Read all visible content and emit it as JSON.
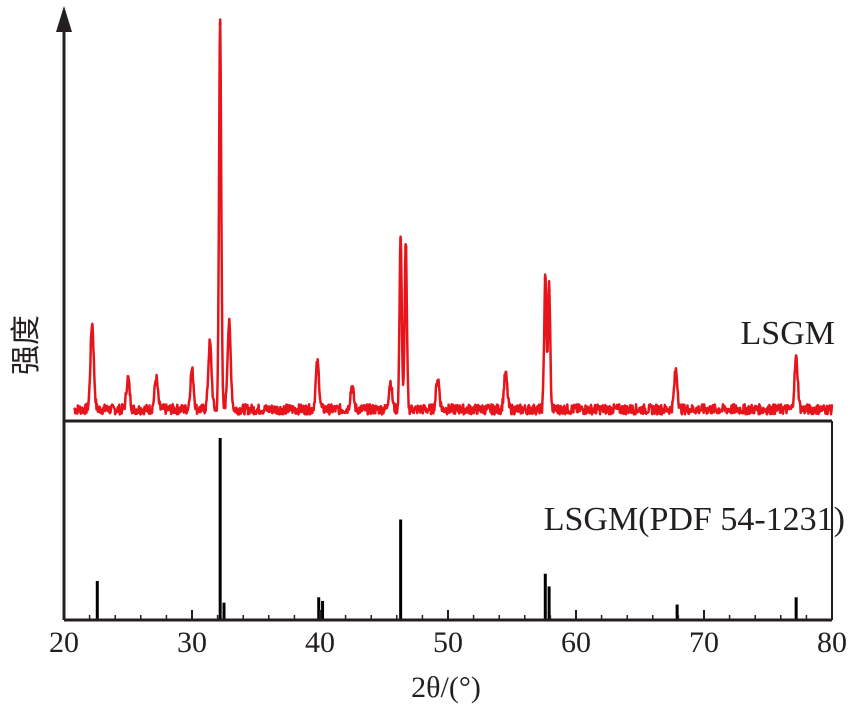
{
  "chart_data": {
    "type": "line",
    "xlabel": "2θ/(°)",
    "ylabel": "强度",
    "xlim": [
      20,
      80
    ],
    "x_ticks": [
      "20",
      "30",
      "40",
      "50",
      "60",
      "70",
      "80"
    ],
    "grid": false,
    "series": [
      {
        "name": "LSGM",
        "color": "#e8141b",
        "kind": "profile",
        "peaks": [
          {
            "x": 22.2,
            "intensity": 22
          },
          {
            "x": 25.0,
            "intensity": 8
          },
          {
            "x": 27.2,
            "intensity": 8
          },
          {
            "x": 30.0,
            "intensity": 10
          },
          {
            "x": 31.4,
            "intensity": 17
          },
          {
            "x": 32.2,
            "intensity": 100
          },
          {
            "x": 32.9,
            "intensity": 22
          },
          {
            "x": 39.8,
            "intensity": 12
          },
          {
            "x": 42.5,
            "intensity": 6
          },
          {
            "x": 45.5,
            "intensity": 7
          },
          {
            "x": 46.3,
            "intensity": 45
          },
          {
            "x": 46.7,
            "intensity": 43
          },
          {
            "x": 49.2,
            "intensity": 8
          },
          {
            "x": 54.5,
            "intensity": 9
          },
          {
            "x": 57.6,
            "intensity": 35
          },
          {
            "x": 57.9,
            "intensity": 32
          },
          {
            "x": 67.8,
            "intensity": 10
          },
          {
            "x": 77.2,
            "intensity": 13
          }
        ]
      },
      {
        "name": "LSGM(PDF 54-1231)",
        "color": "#000000",
        "kind": "sticks",
        "peaks": [
          {
            "x": 22.6,
            "intensity": 21
          },
          {
            "x": 32.2,
            "intensity": 100
          },
          {
            "x": 32.5,
            "intensity": 9
          },
          {
            "x": 39.9,
            "intensity": 12
          },
          {
            "x": 40.2,
            "intensity": 10
          },
          {
            "x": 46.3,
            "intensity": 55
          },
          {
            "x": 57.6,
            "intensity": 25
          },
          {
            "x": 57.9,
            "intensity": 18
          },
          {
            "x": 67.9,
            "intensity": 8
          },
          {
            "x": 77.2,
            "intensity": 12
          }
        ]
      }
    ]
  }
}
